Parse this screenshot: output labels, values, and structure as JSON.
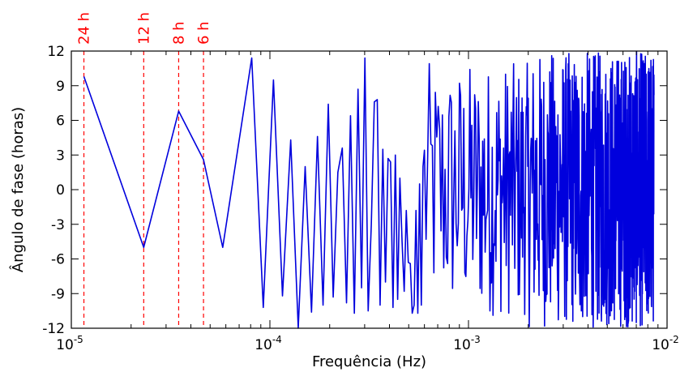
{
  "colors": {
    "series": "#0000dd",
    "markers": "#ff0000",
    "axes": "#000000",
    "background": "#ffffff"
  },
  "chart_data": {
    "type": "line",
    "xlabel": "Frequência (Hz)",
    "ylabel": "Ângulo de fase (horas)",
    "xscale": "log",
    "xlim": [
      1e-05,
      0.01
    ],
    "ylim": [
      -12,
      12
    ],
    "yticks": [
      -12,
      -9,
      -6,
      -3,
      0,
      3,
      6,
      9,
      12
    ],
    "xticks": [
      {
        "value": 1e-05,
        "base": "10",
        "exp": "-5"
      },
      {
        "value": 0.0001,
        "base": "10",
        "exp": "-4"
      },
      {
        "value": 0.001,
        "base": "10",
        "exp": "-3"
      },
      {
        "value": 0.01,
        "base": "10",
        "exp": "-2"
      }
    ],
    "grid": false,
    "markers": [
      {
        "label": "24 h",
        "frequency": 1.157e-05
      },
      {
        "label": "12 h",
        "frequency": 2.315e-05
      },
      {
        "label": "8 h",
        "frequency": 3.472e-05
      },
      {
        "label": "6 h",
        "frequency": 4.63e-05
      }
    ],
    "series": [
      {
        "x": [
          1.157e-05,
          2.315e-05,
          3.472e-05,
          4.63e-05,
          5.787e-05,
          8.1e-05,
          9.26e-05,
          0.0001042,
          0.0001157,
          0.0001273,
          0.0001389,
          0.0001505,
          0.000162,
          0.0001736,
          0.0001852,
          0.0001968,
          0.0002083,
          0.0002199,
          0.0002315,
          0.0002431,
          0.0002546,
          0.0002662,
          0.0002778,
          0.0002894,
          0.0003009,
          0.0003125,
          0.0003241,
          0.0003356,
          0.0003472,
          0.0003588,
          0.0003704,
          0.0003819,
          0.0003935,
          0.0004051,
          0.0004167,
          0.0004282,
          0.0004398,
          0.0004514,
          0.000463,
          0.0004745,
          0.0004861,
          0.0004977,
          0.0005093,
          0.0005208,
          0.0005324,
          0.000544,
          0.0005556,
          0.0005671,
          0.0005787,
          0.0005903
        ],
        "values": [
          9.8,
          -5.0,
          6.8,
          2.6,
          -5.0,
          11.4,
          -10.2,
          9.5,
          -9.2,
          4.3,
          -12.0,
          2.0,
          -10.6,
          4.6,
          -10.0,
          7.4,
          -9.3,
          1.5,
          3.6,
          -9.8,
          6.4,
          -10.7,
          8.7,
          -8.5,
          11.4,
          -10.5,
          -3.0,
          7.6,
          7.8,
          -10.0,
          3.5,
          -8.0,
          2.7,
          2.4,
          -10.2,
          3.0,
          -9.5,
          1.0,
          -4.5,
          -8.8,
          -1.8,
          -6.3,
          -6.4,
          -10.7,
          -10.0,
          -1.8,
          -10.7,
          0.5,
          -10.0,
          2.0
        ],
        "note_dense_region": "values above 6e-4 Hz oscillate rapidly across the full -12 to 12 range"
      }
    ]
  }
}
